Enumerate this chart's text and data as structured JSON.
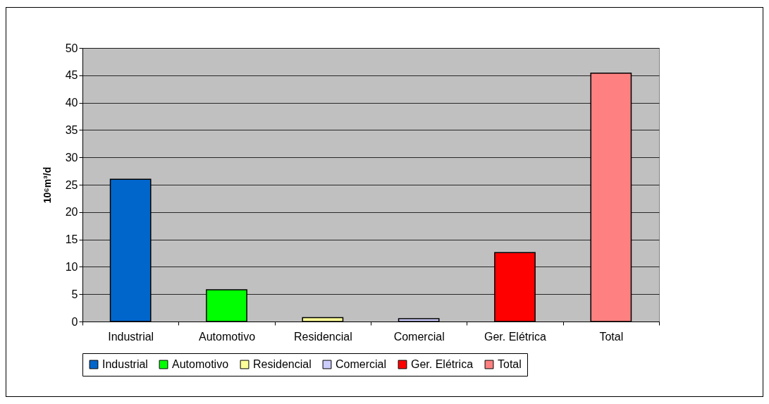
{
  "chart_data": {
    "type": "bar",
    "ylabel": "10⁶m³/d",
    "categories": [
      "Industrial",
      "Automotivo",
      "Residencial",
      "Comercial",
      "Ger. Elétrica",
      "Total"
    ],
    "series": [
      {
        "name": "Industrial",
        "color": "#0066cc",
        "values": [
          26,
          null,
          null,
          null,
          null,
          null
        ]
      },
      {
        "name": "Automotivo",
        "color": "#00ff00",
        "values": [
          null,
          5.8,
          null,
          null,
          null,
          null
        ]
      },
      {
        "name": "Residencial",
        "color": "#ffff99",
        "values": [
          null,
          null,
          0.7,
          null,
          null,
          null
        ]
      },
      {
        "name": "Comercial",
        "color": "#ccccff",
        "values": [
          null,
          null,
          null,
          0.5,
          null,
          null
        ]
      },
      {
        "name": "Ger. Elétrica",
        "color": "#ff0000",
        "values": [
          null,
          null,
          null,
          null,
          12.6,
          null
        ]
      },
      {
        "name": "Total",
        "color": "#ff8080",
        "values": [
          null,
          null,
          null,
          null,
          null,
          45.4
        ]
      }
    ],
    "ylim": [
      0,
      50
    ],
    "yticks": [
      0,
      5,
      10,
      15,
      20,
      25,
      30,
      35,
      40,
      45,
      50
    ],
    "grid": "y",
    "legend": "bottom"
  }
}
